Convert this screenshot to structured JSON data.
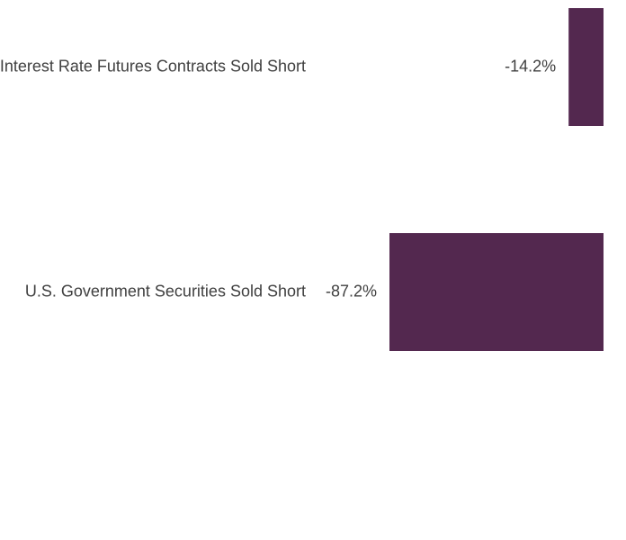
{
  "chart_data": {
    "type": "bar",
    "orientation": "horizontal",
    "categories": [
      "Interest Rate Futures Contracts Sold Short",
      "U.S. Government Securities Sold Short"
    ],
    "values": [
      -14.2,
      -87.2
    ],
    "value_labels": [
      "-14.2%",
      "-87.2%"
    ],
    "title": "",
    "xlabel": "",
    "ylabel": "",
    "xlim": [
      -87.2,
      0
    ],
    "grid": false,
    "legend": false,
    "bar_color": "#53284f"
  }
}
